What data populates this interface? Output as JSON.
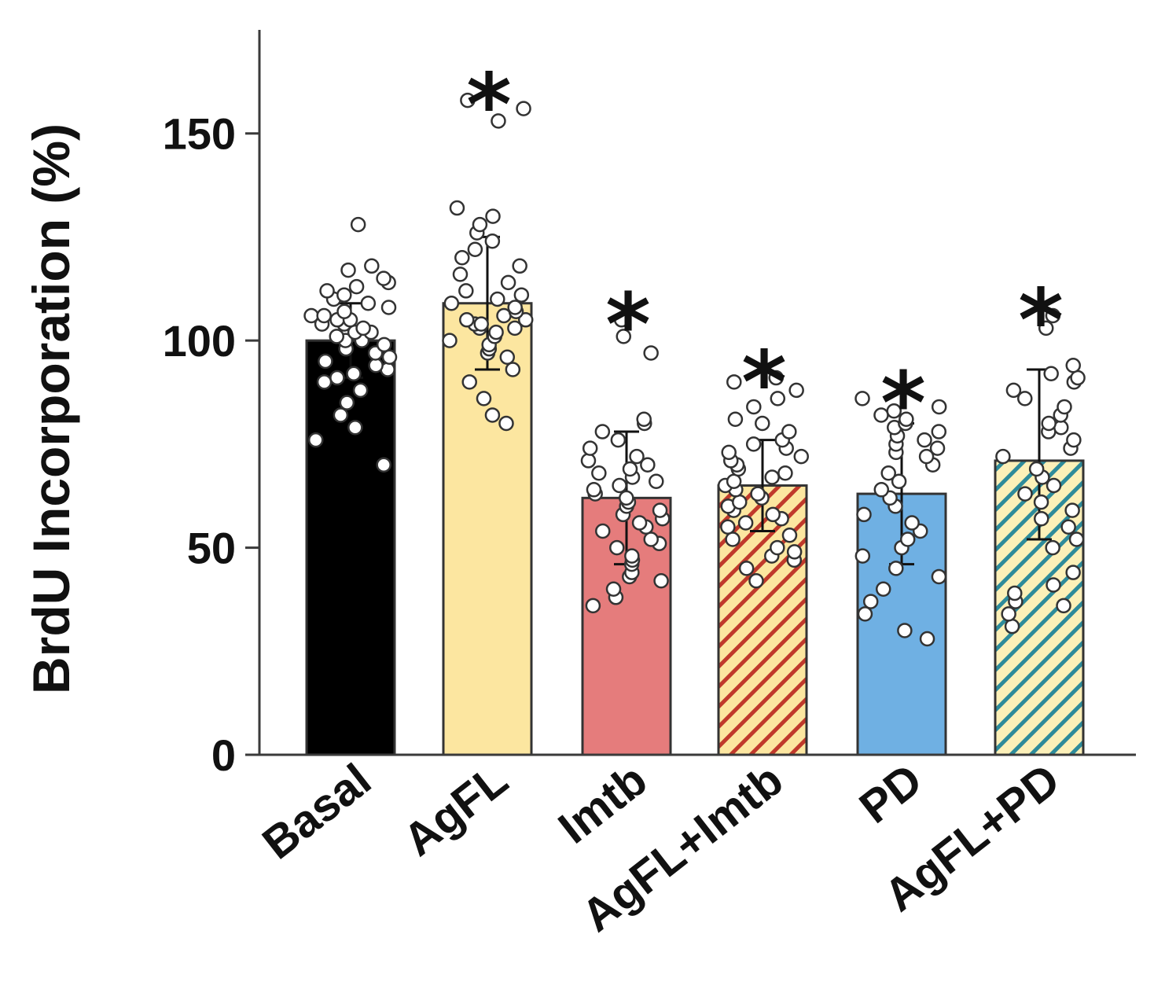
{
  "chart_data": {
    "type": "bar",
    "title": "",
    "xlabel": "",
    "ylabel": "BrdU Incorporation (%)",
    "ylim": [
      0,
      175
    ],
    "yticks": [
      "0",
      "50",
      "100",
      "150"
    ],
    "grid": false,
    "categories": [
      "Basal",
      "AgFL",
      "Imtb",
      "AgFL+Imtb",
      "PD",
      "AgFL+PD"
    ],
    "values": [
      100,
      109,
      62,
      65,
      63,
      71
    ],
    "error": [
      [
        91,
        109
      ],
      [
        93,
        125
      ],
      [
        46,
        78
      ],
      [
        54,
        76
      ],
      [
        46,
        80
      ],
      [
        52,
        93
      ]
    ],
    "significance": [
      "",
      "*",
      "*",
      "*",
      "*",
      "*"
    ],
    "fill_colors": [
      "#000000",
      "#fce6a0",
      "#e57c7c",
      "#fce6a0",
      "#6fb0e3",
      "#fcf0b8"
    ],
    "hatch_colors": [
      "",
      "",
      "",
      "#c0392b",
      "",
      "#2e8b9a"
    ],
    "points": [
      [
        70,
        76,
        79,
        82,
        85,
        88,
        90,
        91,
        92,
        93,
        94,
        95,
        96,
        97,
        98,
        99,
        100,
        100,
        101,
        102,
        102,
        103,
        104,
        104,
        105,
        105,
        106,
        106,
        107,
        108,
        109,
        110,
        111,
        112,
        113,
        114,
        115,
        117,
        118,
        128
      ],
      [
        80,
        82,
        86,
        90,
        93,
        96,
        97,
        98,
        99,
        100,
        101,
        102,
        103,
        103,
        104,
        104,
        105,
        105,
        106,
        107,
        108,
        109,
        110,
        111,
        112,
        114,
        116,
        118,
        120,
        122,
        124,
        126,
        128,
        130,
        132,
        153,
        156,
        158
      ],
      [
        36,
        38,
        40,
        42,
        43,
        44,
        46,
        47,
        48,
        50,
        51,
        52,
        54,
        55,
        56,
        57,
        58,
        59,
        60,
        61,
        62,
        63,
        64,
        65,
        66,
        67,
        68,
        69,
        70,
        71,
        72,
        74,
        76,
        78,
        80,
        81,
        97,
        101,
        105
      ],
      [
        42,
        45,
        47,
        48,
        49,
        50,
        52,
        53,
        55,
        56,
        57,
        58,
        59,
        60,
        61,
        62,
        63,
        64,
        65,
        66,
        67,
        68,
        69,
        70,
        71,
        72,
        73,
        74,
        75,
        76,
        78,
        80,
        81,
        84,
        86,
        88,
        90,
        91
      ],
      [
        28,
        30,
        34,
        37,
        40,
        43,
        45,
        48,
        50,
        52,
        54,
        56,
        58,
        60,
        62,
        64,
        66,
        68,
        70,
        72,
        73,
        74,
        75,
        76,
        77,
        78,
        79,
        80,
        81,
        82,
        83,
        84,
        86
      ],
      [
        31,
        34,
        36,
        37,
        39,
        41,
        44,
        50,
        52,
        55,
        57,
        59,
        61,
        63,
        65,
        67,
        69,
        72,
        74,
        76,
        78,
        79,
        80,
        82,
        84,
        86,
        88,
        90,
        91,
        92,
        94,
        103,
        106
      ]
    ]
  }
}
